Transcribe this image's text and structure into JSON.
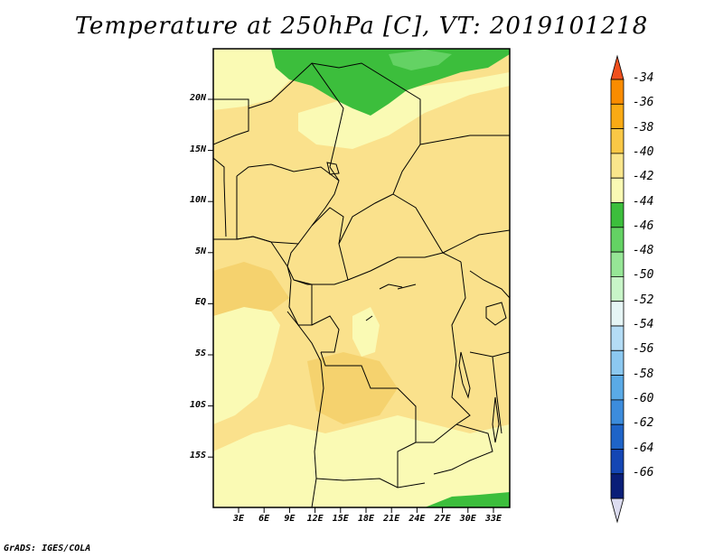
{
  "title": "Temperature at 250hPa [C], VT: 2019101218",
  "credit": "GrADS: IGES/COLA",
  "map": {
    "lat_labels": [
      "20N",
      "15N",
      "10N",
      "5N",
      "EQ",
      "5S",
      "10S",
      "15S"
    ],
    "lon_labels": [
      "3E",
      "6E",
      "9E",
      "12E",
      "15E",
      "18E",
      "21E",
      "24E",
      "27E",
      "30E",
      "33E"
    ]
  },
  "legend": {
    "labels": [
      "-34",
      "-36",
      "-38",
      "-40",
      "-42",
      "-44",
      "-46",
      "-48",
      "-50",
      "-52",
      "-54",
      "-56",
      "-58",
      "-60",
      "-62",
      "-64",
      "-66"
    ],
    "colors": [
      "#f0501e",
      "#fa8c00",
      "#faaa14",
      "#fac846",
      "#fae68c",
      "#fafab4",
      "#3cbe3c",
      "#64d264",
      "#96e696",
      "#c8f5c8",
      "#e6f5f5",
      "#b4dcf5",
      "#8cc8f0",
      "#5aaae6",
      "#3c8cdc",
      "#1e64c8",
      "#1446b4",
      "#0a1e78",
      "#dcdcf0"
    ]
  },
  "colors": {
    "field_base": "#fae18c",
    "field_light": "#fafab4",
    "field_dark": "#f5d26e",
    "field_green": "#3cbe3c",
    "field_green_light": "#64d264"
  }
}
